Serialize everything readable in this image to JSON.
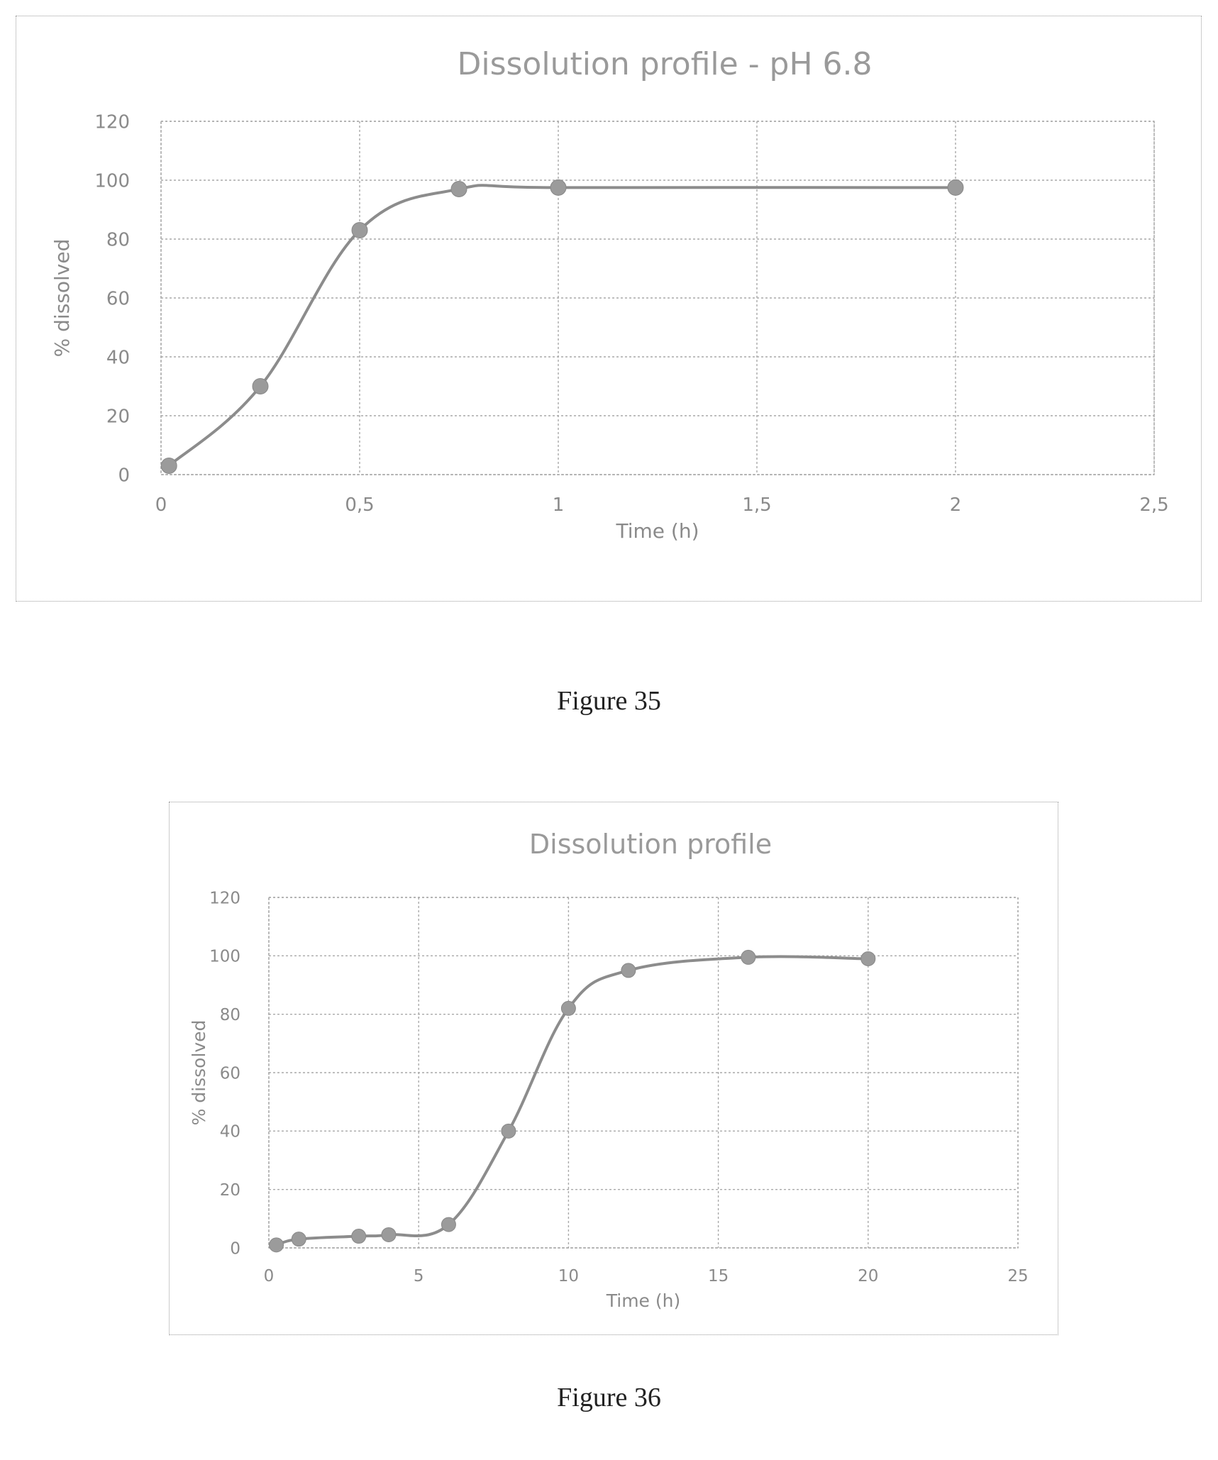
{
  "chart_data": [
    {
      "type": "line",
      "title": "Dissolution profile - pH 6.8",
      "xlabel": "Time (h)",
      "ylabel": "% dissolved",
      "x_tick_labels": [
        "0",
        "0,5",
        "1",
        "1,5",
        "2",
        "2,5"
      ],
      "y_tick_labels": [
        "0",
        "20",
        "40",
        "60",
        "80",
        "100",
        "120"
      ],
      "xlim": [
        0,
        2.5
      ],
      "ylim": [
        0,
        120
      ],
      "x_ticks": [
        0,
        0.5,
        1,
        1.5,
        2,
        2.5
      ],
      "y_ticks": [
        0,
        20,
        40,
        60,
        80,
        100,
        120
      ],
      "grid": true,
      "smooth": true,
      "series": [
        {
          "x": [
            0.02,
            0.25,
            0.5,
            0.75,
            1,
            2
          ],
          "y": [
            3,
            30,
            83,
            97,
            97.5,
            97.5
          ]
        }
      ]
    },
    {
      "type": "line",
      "title": "Dissolution profile",
      "xlabel": "Time (h)",
      "ylabel": "% dissolved",
      "x_tick_labels": [
        "0",
        "5",
        "10",
        "15",
        "20",
        "25"
      ],
      "y_tick_labels": [
        "0",
        "20",
        "40",
        "60",
        "80",
        "100",
        "120"
      ],
      "xlim": [
        0,
        25
      ],
      "ylim": [
        0,
        120
      ],
      "x_ticks": [
        0,
        5,
        10,
        15,
        20,
        25
      ],
      "y_ticks": [
        0,
        20,
        40,
        60,
        80,
        100,
        120
      ],
      "grid": true,
      "smooth": true,
      "series": [
        {
          "x": [
            0.25,
            1,
            3,
            4,
            6,
            8,
            10,
            12,
            16,
            20
          ],
          "y": [
            1,
            3,
            4,
            4.5,
            8,
            40,
            82,
            95,
            99.5,
            99
          ]
        }
      ]
    }
  ],
  "captions": [
    "Figure 35",
    "Figure 36"
  ]
}
